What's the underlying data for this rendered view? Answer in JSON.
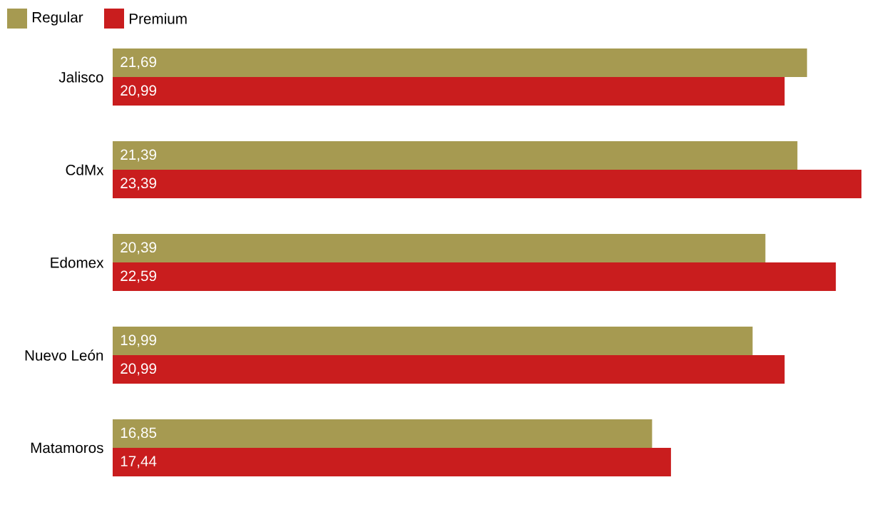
{
  "chart_data": {
    "type": "bar",
    "orientation": "horizontal",
    "categories": [
      "Jalisco",
      "CdMx",
      "Edomex",
      "Nuevo León",
      "Matamoros"
    ],
    "series": [
      {
        "name": "Regular",
        "color": "#a69a51",
        "values": [
          21.69,
          21.39,
          20.39,
          19.99,
          16.85
        ],
        "value_labels": [
          "21,69",
          "21,39",
          "20,39",
          "19,99",
          "16,85"
        ]
      },
      {
        "name": "Premium",
        "color": "#c91d1e",
        "values": [
          20.99,
          23.39,
          22.59,
          20.99,
          17.44
        ],
        "value_labels": [
          "20,99",
          "23,39",
          "22,59",
          "20,99",
          "17,44"
        ]
      }
    ],
    "legend": "top left"
  }
}
